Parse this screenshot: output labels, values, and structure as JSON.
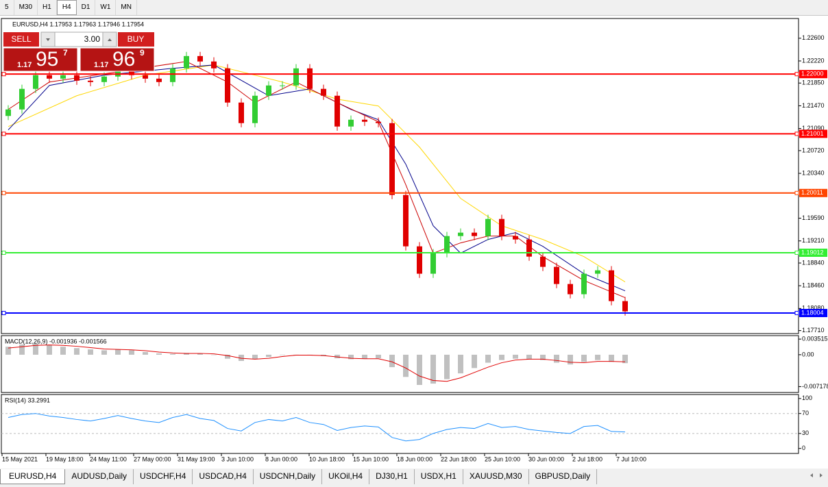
{
  "toolbar": {
    "timeframes": [
      "5",
      "M30",
      "H1",
      "H4",
      "D1",
      "W1",
      "MN"
    ],
    "active": "H4"
  },
  "trade_panel": {
    "sell": "SELL",
    "buy": "BUY",
    "lots": "3.00",
    "bid": {
      "prefix": "1.17",
      "pips": "95",
      "fraction": "7"
    },
    "ask": {
      "prefix": "1.17",
      "pips": "96",
      "fraction": "9"
    }
  },
  "chart_data": [
    {
      "type": "candlestick",
      "title": "EURUSD,H4  1.17953 1.17963 1.17946 1.17954",
      "up_color": "#32cd32",
      "down_color": "#e00000",
      "open": [
        1.213,
        1.21409,
        1.21753,
        1.21982,
        1.21924,
        1.21982,
        1.2189,
        1.21867,
        1.21959,
        1.22153,
        1.21982,
        1.21924,
        1.21867,
        1.22096,
        1.22302,
        1.22211,
        1.22096,
        1.21524,
        1.2118,
        1.21638,
        1.2181,
        1.2181,
        1.22096,
        1.21753,
        1.21638,
        1.21123,
        1.21237,
        1.21203,
        1.2118,
        1.19978,
        1.19119,
        1.18661,
        1.19005,
        1.19291,
        1.19348,
        1.19291,
        1.19577,
        1.19291,
        1.19234,
        1.18947,
        1.18776,
        1.18489,
        1.18318,
        1.18661,
        1.18718,
        1.18203
      ],
      "high": [
        1.21479,
        1.21823,
        1.22052,
        1.22052,
        1.22052,
        1.22052,
        1.2196,
        1.22029,
        1.22223,
        1.22223,
        1.22052,
        1.21994,
        1.22166,
        1.22372,
        1.22372,
        1.22281,
        1.22166,
        1.21594,
        1.21708,
        1.2188,
        1.2188,
        1.22166,
        1.22166,
        1.21823,
        1.21708,
        1.21307,
        1.21307,
        1.21273,
        1.2125,
        1.20048,
        1.19189,
        1.19075,
        1.19361,
        1.19418,
        1.19418,
        1.19647,
        1.19647,
        1.19361,
        1.19304,
        1.19017,
        1.18846,
        1.18559,
        1.18731,
        1.18788,
        1.18788,
        1.18273
      ],
      "low": [
        1.2123,
        1.21339,
        1.21683,
        1.21854,
        1.21854,
        1.2182,
        1.21797,
        1.21797,
        1.21889,
        1.21912,
        1.21854,
        1.21797,
        1.21797,
        1.22026,
        1.22141,
        1.22026,
        1.21454,
        1.2111,
        1.2111,
        1.21568,
        1.2174,
        1.2174,
        1.21683,
        1.21568,
        1.21053,
        1.21053,
        1.21133,
        1.2111,
        1.19908,
        1.19049,
        1.18591,
        1.18591,
        1.18935,
        1.19221,
        1.19221,
        1.19221,
        1.19221,
        1.19164,
        1.18877,
        1.18706,
        1.18419,
        1.18248,
        1.18248,
        1.18591,
        1.18133,
        1.17961
      ],
      "close": [
        1.21409,
        1.21753,
        1.21982,
        1.21924,
        1.21982,
        1.2189,
        1.21867,
        1.21959,
        1.22153,
        1.21982,
        1.21924,
        1.21867,
        1.22096,
        1.22302,
        1.22211,
        1.22096,
        1.21524,
        1.2118,
        1.21638,
        1.2181,
        1.2181,
        1.22096,
        1.21753,
        1.21638,
        1.21123,
        1.21237,
        1.21203,
        1.2118,
        1.19978,
        1.19119,
        1.18661,
        1.19005,
        1.19291,
        1.19348,
        1.19291,
        1.19577,
        1.19291,
        1.19234,
        1.18947,
        1.18776,
        1.18489,
        1.18318,
        1.18661,
        1.18718,
        1.18203,
        1.18031
      ],
      "lines": [
        {
          "color": "#ffd700",
          "x": [
            0,
            5,
            10,
            15,
            20,
            24,
            27,
            30,
            33,
            36,
            39,
            42,
            45
          ],
          "values": [
            1.21122,
            1.21638,
            1.21982,
            1.22153,
            1.21867,
            1.21581,
            1.21467,
            1.20779,
            1.19921,
            1.19463,
            1.19234,
            1.18947,
            1.18524
          ]
        },
        {
          "color": "#00008b",
          "x": [
            0,
            3,
            7,
            12,
            15,
            19,
            22,
            25,
            27,
            29,
            31,
            33,
            35,
            37,
            39,
            42,
            45
          ],
          "values": [
            1.21066,
            1.2181,
            1.21982,
            1.22096,
            1.22153,
            1.21638,
            1.21753,
            1.21409,
            1.21237,
            1.20493,
            1.19463,
            1.19005,
            1.19234,
            1.19348,
            1.19119,
            1.18661,
            1.18375
          ]
        },
        {
          "color": "#cc0000",
          "x": [
            0,
            3,
            8,
            13,
            16,
            18,
            21,
            24,
            27,
            29,
            31,
            33,
            35,
            37,
            39,
            42,
            45
          ],
          "values": [
            1.21409,
            1.21867,
            1.22039,
            1.22211,
            1.21867,
            1.21524,
            1.21867,
            1.21524,
            1.21203,
            1.2015,
            1.19005,
            1.19177,
            1.19291,
            1.19291,
            1.18947,
            1.18547,
            1.18261
          ]
        }
      ],
      "levels": [
        {
          "value": 1.22,
          "label": "1.22000",
          "color": "#ff0000"
        },
        {
          "value": 1.21001,
          "label": "1.21001",
          "color": "#ff0000"
        },
        {
          "value": 1.20011,
          "label": "1.20011",
          "color": "#ff4500"
        },
        {
          "value": 1.19012,
          "label": "1.19012",
          "color": "#33ee33"
        },
        {
          "value": 1.18004,
          "label": "1.18004",
          "color": "#0000ff"
        }
      ],
      "ylim": [
        1.1766,
        1.2293
      ],
      "yticks": [
        {
          "value": 1.226,
          "label": "1.22600"
        },
        {
          "value": 1.2222,
          "label": "1.22220"
        },
        {
          "value": 1.2185,
          "label": "1.21850"
        },
        {
          "value": 1.2147,
          "label": "1.21470"
        },
        {
          "value": 1.2109,
          "label": "1.21090"
        },
        {
          "value": 1.2072,
          "label": "1.20720"
        },
        {
          "value": 1.2034,
          "label": "1.20340"
        },
        {
          "value": 1.1959,
          "label": "1.19590"
        },
        {
          "value": 1.1921,
          "label": "1.19210"
        },
        {
          "value": 1.1884,
          "label": "1.18840"
        },
        {
          "value": 1.1846,
          "label": "1.18460"
        },
        {
          "value": 1.1808,
          "label": "1.18080"
        },
        {
          "value": 1.1771,
          "label": "1.17710"
        }
      ],
      "time_labels": [
        "15 May 2021",
        "19 May 18:00",
        "24 May 11:00",
        "27 May 00:00",
        "31 May 19:00",
        "3 Jun 10:00",
        "8 Jun 00:00",
        "10 Jun 18:00",
        "15 Jun 10:00",
        "18 Jun 00:00",
        "22 Jun 18:00",
        "25 Jun 10:00",
        "30 Jun 00:00",
        "2 Jul 18:00",
        "7 Jul 10:00"
      ]
    },
    {
      "type": "macd",
      "title": "MACD(12,26,9) -0.001936 -0.001566",
      "color": "#c0c0c0",
      "values": [
        0.0018,
        0.0023,
        0.0025,
        0.0022,
        0.0018,
        0.0015,
        0.0012,
        0.001,
        0.0012,
        0.001,
        0.0006,
        0.0003,
        0.0002,
        0.0004,
        0.0003,
        0,
        -0.0009,
        -0.0014,
        -0.001,
        -0.0005,
        -0.0001,
        0,
        -0.0001,
        -0.0003,
        -0.0008,
        -0.001,
        -0.0009,
        -0.0008,
        -0.0028,
        -0.005,
        -0.0068,
        -0.0065,
        -0.0055,
        -0.0042,
        -0.003,
        -0.0018,
        -0.0012,
        -0.0009,
        -0.001,
        -0.0012,
        -0.0018,
        -0.0022,
        -0.0016,
        -0.0012,
        -0.0016,
        -0.0019
      ],
      "signal": {
        "color": "#e00000",
        "values": [
          0.0015,
          0.0018,
          0.0021,
          0.0022,
          0.0021,
          0.0019,
          0.0016,
          0.0013,
          0.0012,
          0.0011,
          0.0009,
          0.0006,
          0.0004,
          0.0003,
          0.0003,
          0.0002,
          -0.0002,
          -0.0008,
          -0.001,
          -0.0008,
          -0.0004,
          -0.0001,
          -0.0001,
          -0.0002,
          -0.0005,
          -0.0008,
          -0.0009,
          -0.0009,
          -0.0016,
          -0.003,
          -0.0048,
          -0.0058,
          -0.006,
          -0.0052,
          -0.004,
          -0.0028,
          -0.0018,
          -0.0012,
          -0.001,
          -0.001,
          -0.0013,
          -0.0017,
          -0.0018,
          -0.0015,
          -0.0015,
          -0.0016
        ]
      },
      "ylim": [
        -0.0085,
        0.0043
      ],
      "yticks": [
        0.003515,
        {
          "value": 0,
          "label": "0.00"
        },
        -0.007178
      ]
    },
    {
      "type": "line",
      "title": "RSI(14) 33.2991",
      "color": "#1e90ff",
      "values": [
        62,
        68,
        70,
        65,
        62,
        58,
        55,
        60,
        66,
        60,
        55,
        52,
        62,
        68,
        60,
        56,
        40,
        35,
        52,
        58,
        55,
        62,
        52,
        48,
        36,
        42,
        45,
        43,
        22,
        15,
        18,
        30,
        38,
        42,
        40,
        50,
        42,
        44,
        38,
        35,
        32,
        30,
        44,
        46,
        34,
        33
      ],
      "levels": [
        70,
        30
      ],
      "ylim": [
        -10,
        108
      ],
      "yticks": [
        100,
        70,
        30,
        0
      ]
    }
  ],
  "tabs": [
    "EURUSD,H4",
    "AUDUSD,Daily",
    "USDCHF,H4",
    "USDCAD,H4",
    "USDCNH,Daily",
    "UKOil,H4",
    "DJ30,H1",
    "USDX,H1",
    "XAUUSD,M30",
    "GBPUSD,Daily"
  ]
}
